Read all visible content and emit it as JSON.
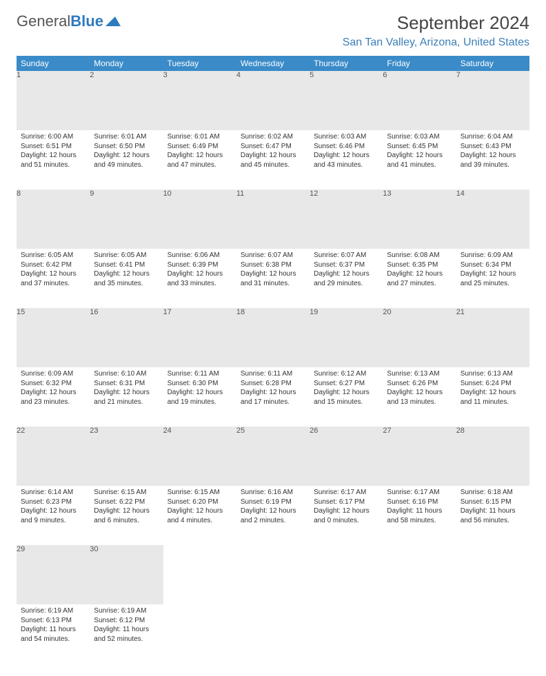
{
  "logo": {
    "text_gray": "General",
    "text_blue": "Blue"
  },
  "title": "September 2024",
  "location": "San Tan Valley, Arizona, United States",
  "header_bg": "#3a8bc8",
  "header_text": "#ffffff",
  "daynum_bg": "#e8e8e8",
  "rule_color": "#2f6ea8",
  "columns": [
    "Sunday",
    "Monday",
    "Tuesday",
    "Wednesday",
    "Thursday",
    "Friday",
    "Saturday"
  ],
  "weeks": [
    [
      {
        "n": "1",
        "sr": "6:00 AM",
        "ss": "6:51 PM",
        "dl": "12 hours and 51 minutes."
      },
      {
        "n": "2",
        "sr": "6:01 AM",
        "ss": "6:50 PM",
        "dl": "12 hours and 49 minutes."
      },
      {
        "n": "3",
        "sr": "6:01 AM",
        "ss": "6:49 PM",
        "dl": "12 hours and 47 minutes."
      },
      {
        "n": "4",
        "sr": "6:02 AM",
        "ss": "6:47 PM",
        "dl": "12 hours and 45 minutes."
      },
      {
        "n": "5",
        "sr": "6:03 AM",
        "ss": "6:46 PM",
        "dl": "12 hours and 43 minutes."
      },
      {
        "n": "6",
        "sr": "6:03 AM",
        "ss": "6:45 PM",
        "dl": "12 hours and 41 minutes."
      },
      {
        "n": "7",
        "sr": "6:04 AM",
        "ss": "6:43 PM",
        "dl": "12 hours and 39 minutes."
      }
    ],
    [
      {
        "n": "8",
        "sr": "6:05 AM",
        "ss": "6:42 PM",
        "dl": "12 hours and 37 minutes."
      },
      {
        "n": "9",
        "sr": "6:05 AM",
        "ss": "6:41 PM",
        "dl": "12 hours and 35 minutes."
      },
      {
        "n": "10",
        "sr": "6:06 AM",
        "ss": "6:39 PM",
        "dl": "12 hours and 33 minutes."
      },
      {
        "n": "11",
        "sr": "6:07 AM",
        "ss": "6:38 PM",
        "dl": "12 hours and 31 minutes."
      },
      {
        "n": "12",
        "sr": "6:07 AM",
        "ss": "6:37 PM",
        "dl": "12 hours and 29 minutes."
      },
      {
        "n": "13",
        "sr": "6:08 AM",
        "ss": "6:35 PM",
        "dl": "12 hours and 27 minutes."
      },
      {
        "n": "14",
        "sr": "6:09 AM",
        "ss": "6:34 PM",
        "dl": "12 hours and 25 minutes."
      }
    ],
    [
      {
        "n": "15",
        "sr": "6:09 AM",
        "ss": "6:32 PM",
        "dl": "12 hours and 23 minutes."
      },
      {
        "n": "16",
        "sr": "6:10 AM",
        "ss": "6:31 PM",
        "dl": "12 hours and 21 minutes."
      },
      {
        "n": "17",
        "sr": "6:11 AM",
        "ss": "6:30 PM",
        "dl": "12 hours and 19 minutes."
      },
      {
        "n": "18",
        "sr": "6:11 AM",
        "ss": "6:28 PM",
        "dl": "12 hours and 17 minutes."
      },
      {
        "n": "19",
        "sr": "6:12 AM",
        "ss": "6:27 PM",
        "dl": "12 hours and 15 minutes."
      },
      {
        "n": "20",
        "sr": "6:13 AM",
        "ss": "6:26 PM",
        "dl": "12 hours and 13 minutes."
      },
      {
        "n": "21",
        "sr": "6:13 AM",
        "ss": "6:24 PM",
        "dl": "12 hours and 11 minutes."
      }
    ],
    [
      {
        "n": "22",
        "sr": "6:14 AM",
        "ss": "6:23 PM",
        "dl": "12 hours and 9 minutes."
      },
      {
        "n": "23",
        "sr": "6:15 AM",
        "ss": "6:22 PM",
        "dl": "12 hours and 6 minutes."
      },
      {
        "n": "24",
        "sr": "6:15 AM",
        "ss": "6:20 PM",
        "dl": "12 hours and 4 minutes."
      },
      {
        "n": "25",
        "sr": "6:16 AM",
        "ss": "6:19 PM",
        "dl": "12 hours and 2 minutes."
      },
      {
        "n": "26",
        "sr": "6:17 AM",
        "ss": "6:17 PM",
        "dl": "12 hours and 0 minutes."
      },
      {
        "n": "27",
        "sr": "6:17 AM",
        "ss": "6:16 PM",
        "dl": "11 hours and 58 minutes."
      },
      {
        "n": "28",
        "sr": "6:18 AM",
        "ss": "6:15 PM",
        "dl": "11 hours and 56 minutes."
      }
    ],
    [
      {
        "n": "29",
        "sr": "6:19 AM",
        "ss": "6:13 PM",
        "dl": "11 hours and 54 minutes."
      },
      {
        "n": "30",
        "sr": "6:19 AM",
        "ss": "6:12 PM",
        "dl": "11 hours and 52 minutes."
      },
      null,
      null,
      null,
      null,
      null
    ]
  ],
  "labels": {
    "sunrise": "Sunrise:",
    "sunset": "Sunset:",
    "daylight": "Daylight:"
  }
}
